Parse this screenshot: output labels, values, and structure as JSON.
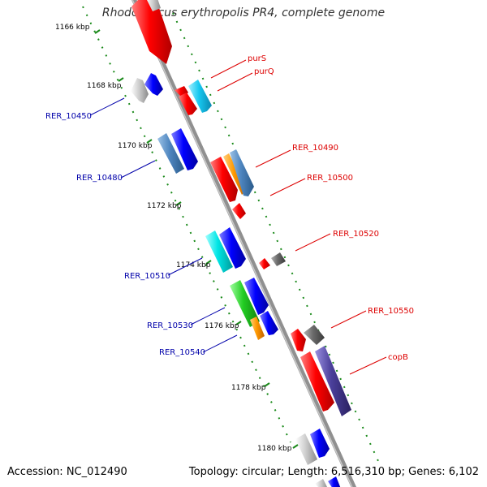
{
  "title": "Rhodococcus erythropolis PR4, complete genome",
  "accession": "Accession: NC_012490",
  "topology": "Topology: circular; Length: 6,516,310 bp; Genes: 6,102",
  "colors": {
    "backbone": "#909090",
    "red": "#ff0000",
    "blue": "#0000ff",
    "steelblue": "#4f86c0",
    "cyan": "#17c8f0",
    "aqua": "#00e5e5",
    "orange": "#ff9900",
    "green": "#22cc22",
    "gray": "#cfcfcf",
    "darkgray": "#6a6a6a",
    "indigo": "#4a3f9a",
    "label_red": "#dd0000",
    "label_blue": "#0000aa",
    "tick": "#1a8a1a"
  },
  "kbp_ticks": [
    "1166 kbp",
    "1168 kbp",
    "1170 kbp",
    "1172 kbp",
    "1174 kbp",
    "1176 kbp",
    "1178 kbp",
    "1180 kbp"
  ],
  "gene_labels": {
    "purS": "purS",
    "purQ": "purQ",
    "RER_10450": "RER_10450",
    "RER_10480": "RER_10480",
    "RER_10490": "RER_10490",
    "RER_10500": "RER_10500",
    "RER_10510": "RER_10510",
    "RER_10520": "RER_10520",
    "RER_10530": "RER_10530",
    "RER_10540": "RER_10540",
    "RER_10550": "RER_10550",
    "copB": "copB"
  }
}
